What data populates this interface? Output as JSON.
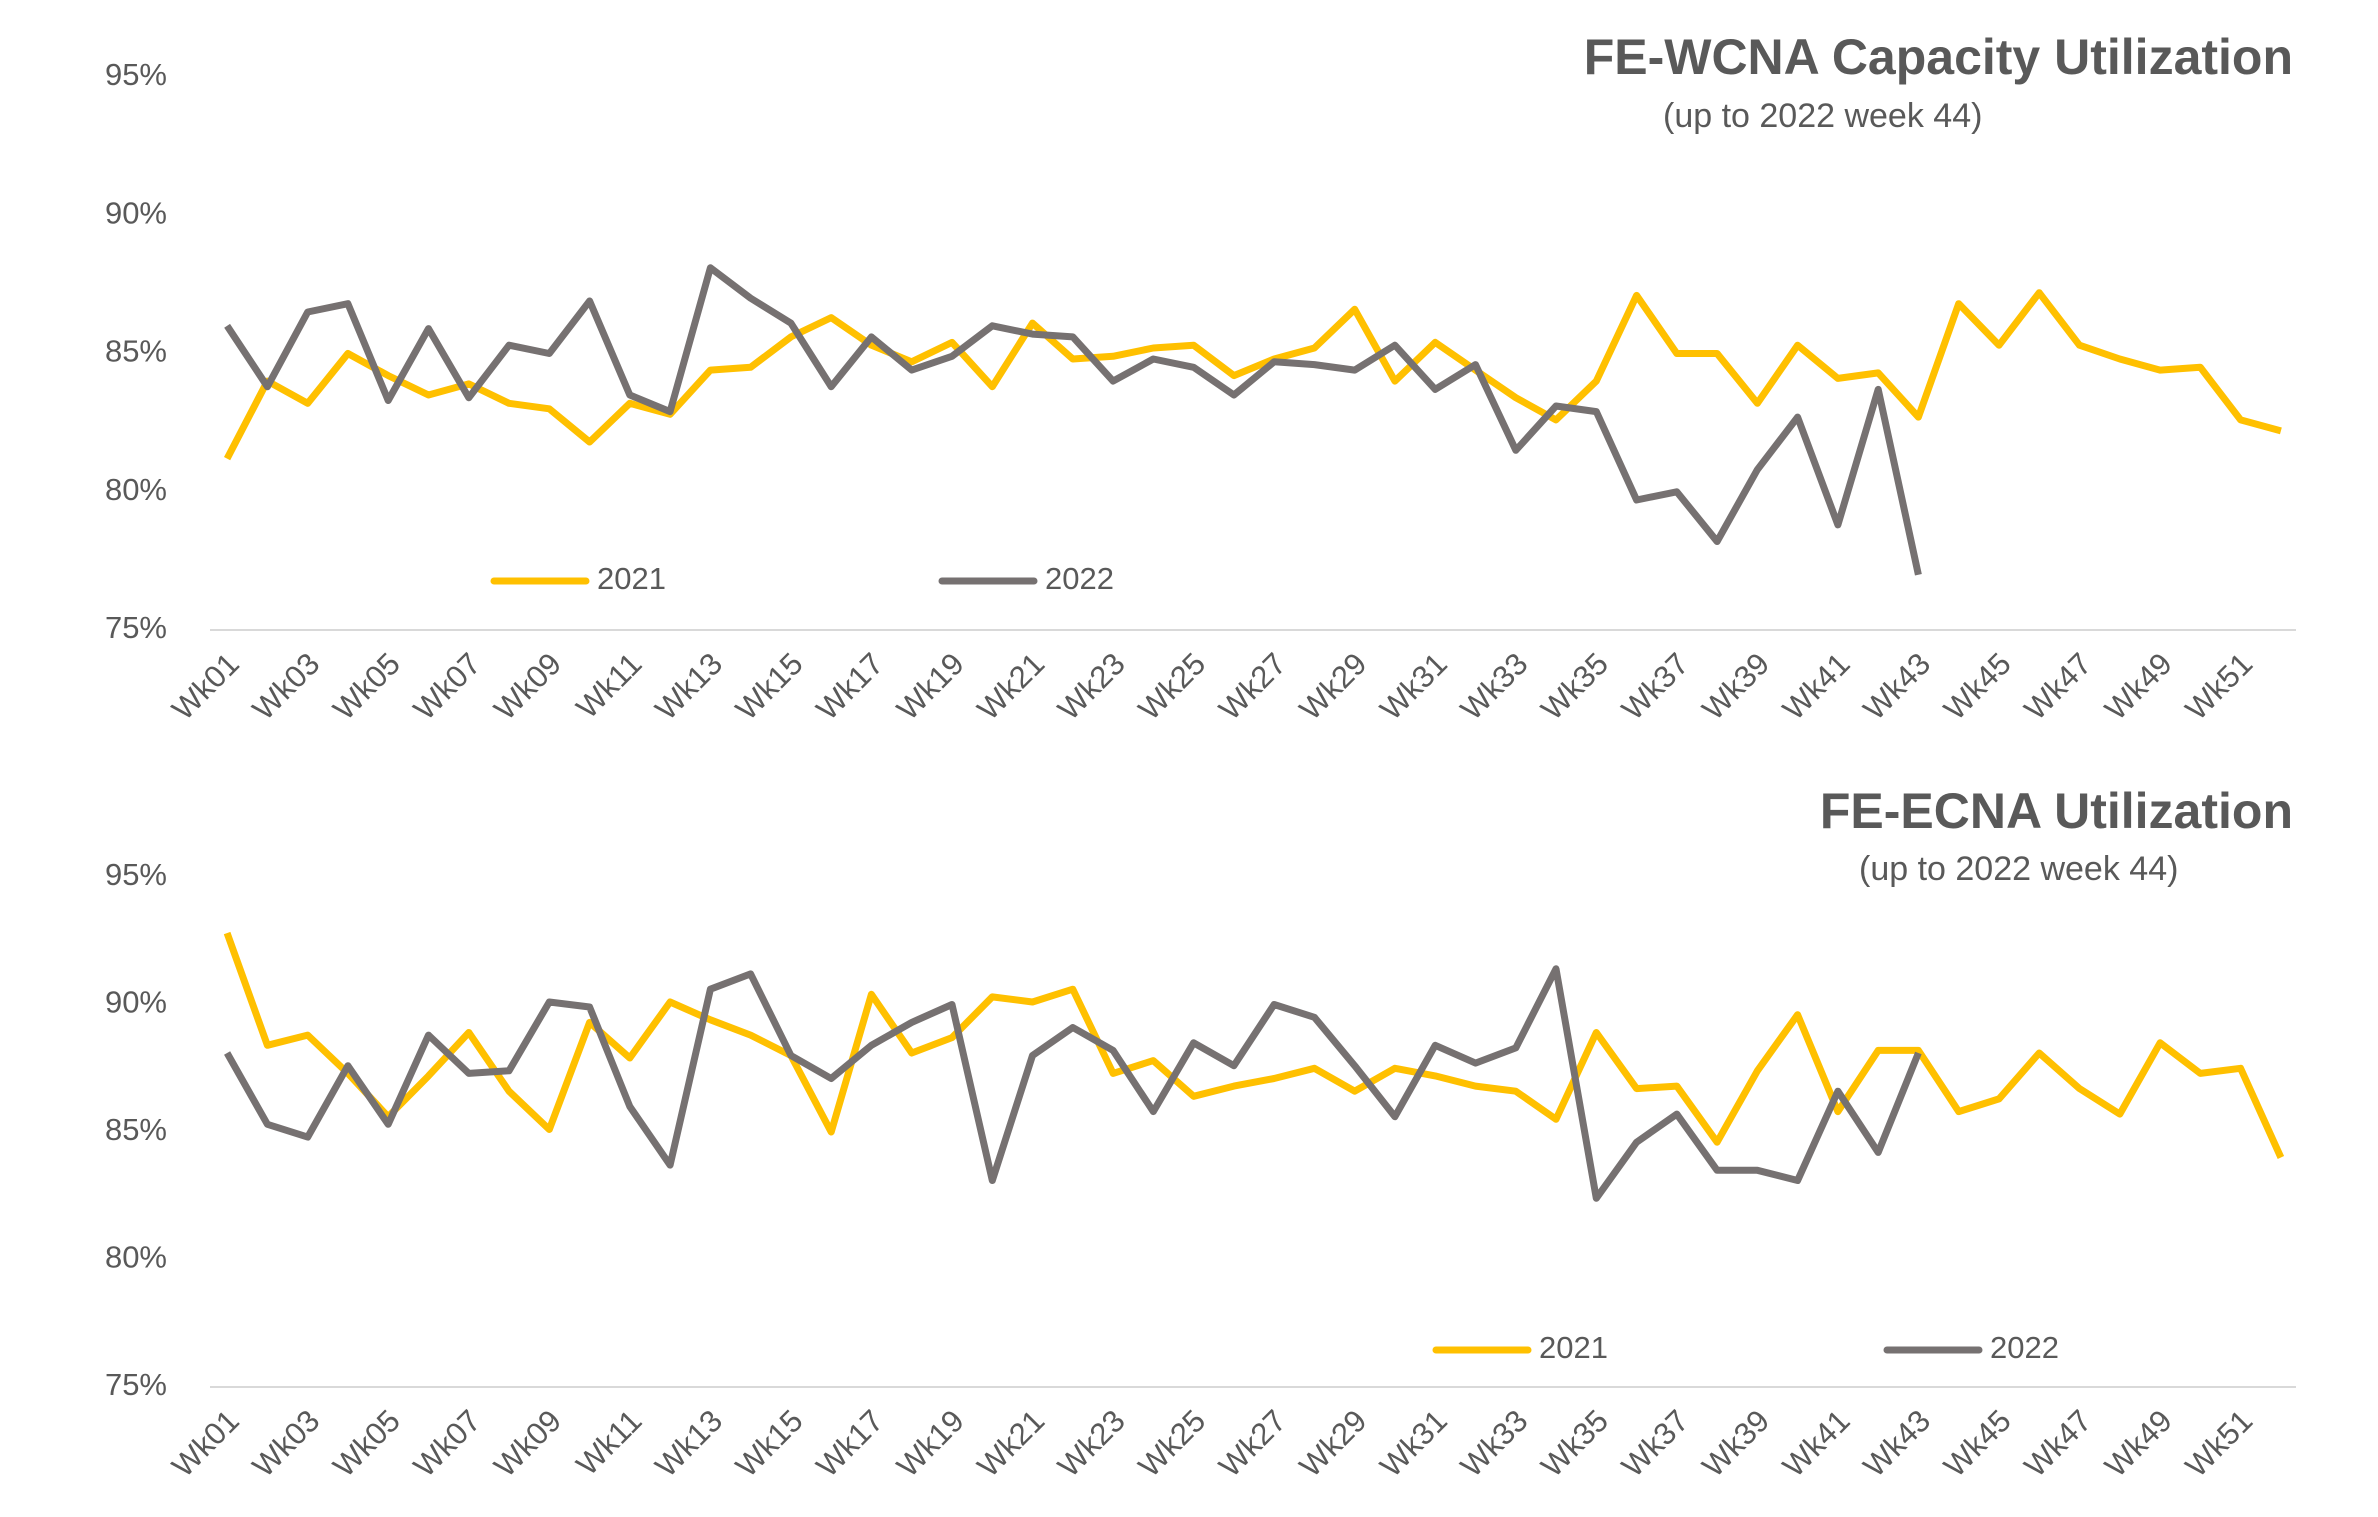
{
  "chart_data": [
    {
      "type": "line",
      "title": "FE-WCNA Capacity Utilization",
      "subtitle": "(up to 2022 week 44)",
      "categories": [
        "Wk01",
        null,
        "Wk03",
        null,
        "Wk05",
        null,
        "Wk07",
        null,
        "Wk09",
        null,
        "Wk11",
        null,
        "Wk13",
        null,
        "Wk15",
        null,
        "Wk17",
        null,
        "Wk19",
        null,
        "Wk21",
        null,
        "Wk23",
        null,
        "Wk25",
        null,
        "Wk27",
        null,
        "Wk29",
        null,
        "Wk31",
        null,
        "Wk33",
        null,
        "Wk35",
        null,
        "Wk37",
        null,
        "Wk39",
        null,
        "Wk41",
        null,
        "Wk43",
        null,
        "Wk45",
        null,
        "Wk47",
        null,
        "Wk49",
        null,
        "Wk51",
        null
      ],
      "series": [
        {
          "name": "2021",
          "color": "#ffc000",
          "values": [
            81.2,
            84.0,
            83.2,
            85.0,
            84.2,
            83.5,
            83.9,
            83.2,
            83.0,
            81.8,
            83.2,
            82.8,
            84.4,
            84.5,
            85.6,
            86.3,
            85.3,
            84.7,
            85.4,
            83.8,
            86.1,
            84.8,
            84.9,
            85.2,
            85.3,
            84.2,
            84.8,
            85.2,
            86.6,
            84.0,
            85.4,
            84.4,
            83.4,
            82.6,
            84.0,
            87.1,
            85.0,
            85.0,
            83.2,
            85.3,
            84.1,
            84.3,
            82.7,
            86.8,
            85.3,
            87.2,
            85.3,
            84.8,
            84.4,
            84.5,
            82.6,
            82.2
          ]
        },
        {
          "name": "2022",
          "color": "#767171",
          "values": [
            86.0,
            83.8,
            86.5,
            86.8,
            83.3,
            85.9,
            83.4,
            85.3,
            85.0,
            86.9,
            83.5,
            82.9,
            88.1,
            87.0,
            86.1,
            83.8,
            85.6,
            84.4,
            84.9,
            86.0,
            85.7,
            85.6,
            84.0,
            84.8,
            84.5,
            83.5,
            84.7,
            84.6,
            84.4,
            85.3,
            83.7,
            84.6,
            81.5,
            83.1,
            82.9,
            79.7,
            80.0,
            78.2,
            80.8,
            82.7,
            78.8,
            83.7,
            77.0,
            null,
            null,
            null,
            null,
            null,
            null,
            null,
            null,
            null
          ]
        }
      ],
      "ylim": [
        75,
        95
      ],
      "yticks": [
        {
          "value": 75,
          "label": "75%"
        },
        {
          "value": 80,
          "label": "80%"
        },
        {
          "value": 85,
          "label": "85%"
        },
        {
          "value": 90,
          "label": "90%"
        },
        {
          "value": 95,
          "label": "95%"
        }
      ]
    },
    {
      "type": "line",
      "title": "FE-ECNA Utilization",
      "subtitle": "(up to 2022 week 44)",
      "categories": [
        "Wk01",
        null,
        "Wk03",
        null,
        "Wk05",
        null,
        "Wk07",
        null,
        "Wk09",
        null,
        "Wk11",
        null,
        "Wk13",
        null,
        "Wk15",
        null,
        "Wk17",
        null,
        "Wk19",
        null,
        "Wk21",
        null,
        "Wk23",
        null,
        "Wk25",
        null,
        "Wk27",
        null,
        "Wk29",
        null,
        "Wk31",
        null,
        "Wk33",
        null,
        "Wk35",
        null,
        "Wk37",
        null,
        "Wk39",
        null,
        "Wk41",
        null,
        "Wk43",
        null,
        "Wk45",
        null,
        "Wk47",
        null,
        "Wk49",
        null,
        "Wk51",
        null
      ],
      "series": [
        {
          "name": "2021",
          "color": "#ffc000",
          "values": [
            92.8,
            88.4,
            88.8,
            87.3,
            85.6,
            87.2,
            88.9,
            86.6,
            85.1,
            89.3,
            87.9,
            90.1,
            89.4,
            88.8,
            88.0,
            85.0,
            90.4,
            88.1,
            88.7,
            90.3,
            90.1,
            90.6,
            87.3,
            87.8,
            86.4,
            86.8,
            87.1,
            87.5,
            86.6,
            87.5,
            87.2,
            86.8,
            86.6,
            85.5,
            88.9,
            86.7,
            86.8,
            84.6,
            87.4,
            89.6,
            85.8,
            88.2,
            88.2,
            85.8,
            86.3,
            88.1,
            86.7,
            85.7,
            88.5,
            87.3,
            87.5,
            84.0
          ]
        },
        {
          "name": "2022",
          "color": "#767171",
          "values": [
            88.1,
            85.3,
            84.8,
            87.6,
            85.3,
            88.8,
            87.3,
            87.4,
            90.1,
            89.9,
            86.0,
            83.7,
            90.6,
            91.2,
            88.0,
            87.1,
            88.4,
            89.3,
            90.0,
            83.1,
            88.0,
            89.1,
            88.2,
            85.8,
            88.5,
            87.6,
            90.0,
            89.5,
            87.6,
            85.6,
            88.4,
            87.7,
            88.3,
            91.4,
            82.4,
            84.6,
            85.7,
            83.5,
            83.5,
            83.1,
            86.6,
            84.2,
            88.1,
            null,
            null,
            null,
            null,
            null,
            null,
            null,
            null,
            null
          ]
        }
      ],
      "ylim": [
        75,
        95
      ],
      "yticks": [
        {
          "value": 75,
          "label": "75%"
        },
        {
          "value": 80,
          "label": "80%"
        },
        {
          "value": 85,
          "label": "85%"
        },
        {
          "value": 90,
          "label": "90%"
        },
        {
          "value": 95,
          "label": "95%"
        }
      ]
    }
  ]
}
